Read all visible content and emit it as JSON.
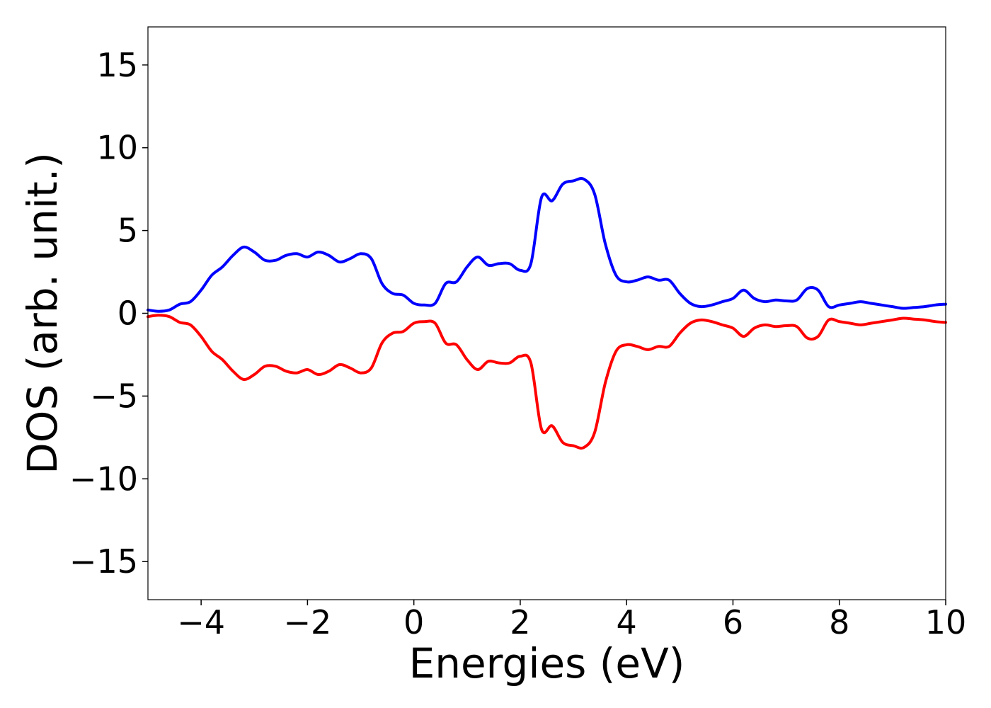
{
  "chart_data": {
    "type": "line",
    "title": "",
    "xlabel": "Energies (eV)",
    "ylabel": "DOS (arb. unit.)",
    "xlim": [
      -5,
      10
    ],
    "ylim": [
      -17.3,
      17.3
    ],
    "xticks": [
      -4,
      -2,
      0,
      2,
      4,
      6,
      8,
      10
    ],
    "yticks": [
      -15,
      -10,
      -5,
      0,
      5,
      10,
      15
    ],
    "xtick_labels": [
      "−4",
      "−2",
      "0",
      "2",
      "4",
      "6",
      "8",
      "10"
    ],
    "ytick_labels": [
      "−15",
      "−10",
      "−5",
      "0",
      "5",
      "10",
      "15"
    ],
    "grid": false,
    "series": [
      {
        "color": "#0000ff",
        "x": [
          -5.0,
          -4.8,
          -4.6,
          -4.4,
          -4.2,
          -4.0,
          -3.8,
          -3.6,
          -3.4,
          -3.2,
          -3.0,
          -2.8,
          -2.6,
          -2.4,
          -2.2,
          -2.0,
          -1.8,
          -1.6,
          -1.4,
          -1.2,
          -1.0,
          -0.8,
          -0.6,
          -0.4,
          -0.2,
          0.0,
          0.2,
          0.4,
          0.6,
          0.8,
          1.0,
          1.2,
          1.4,
          1.6,
          1.8,
          2.0,
          2.2,
          2.4,
          2.6,
          2.8,
          3.0,
          3.2,
          3.4,
          3.6,
          3.8,
          4.0,
          4.2,
          4.4,
          4.6,
          4.8,
          5.0,
          5.2,
          5.4,
          5.6,
          5.8,
          6.0,
          6.2,
          6.4,
          6.6,
          6.8,
          7.0,
          7.2,
          7.4,
          7.6,
          7.8,
          8.0,
          8.2,
          8.4,
          8.6,
          8.8,
          9.0,
          9.2,
          9.4,
          9.6,
          9.8,
          10.0
        ],
        "y": [
          0.2,
          0.12,
          0.2,
          0.55,
          0.7,
          1.4,
          2.3,
          2.8,
          3.5,
          4.0,
          3.7,
          3.2,
          3.2,
          3.5,
          3.6,
          3.4,
          3.7,
          3.5,
          3.1,
          3.3,
          3.6,
          3.3,
          1.8,
          1.2,
          1.1,
          0.6,
          0.5,
          0.6,
          1.8,
          1.9,
          2.8,
          3.4,
          2.9,
          3.0,
          3.0,
          2.6,
          3.0,
          7.0,
          6.8,
          7.8,
          8.0,
          8.1,
          7.2,
          4.2,
          2.3,
          1.9,
          2.0,
          2.2,
          2.0,
          2.0,
          1.2,
          0.6,
          0.4,
          0.5,
          0.7,
          0.9,
          1.4,
          0.9,
          0.7,
          0.8,
          0.75,
          0.8,
          1.5,
          1.4,
          0.4,
          0.5,
          0.6,
          0.7,
          0.6,
          0.5,
          0.4,
          0.3,
          0.35,
          0.4,
          0.5,
          0.55
        ]
      },
      {
        "color": "#ff0000",
        "x": [
          -5.0,
          -4.8,
          -4.6,
          -4.4,
          -4.2,
          -4.0,
          -3.8,
          -3.6,
          -3.4,
          -3.2,
          -3.0,
          -2.8,
          -2.6,
          -2.4,
          -2.2,
          -2.0,
          -1.8,
          -1.6,
          -1.4,
          -1.2,
          -1.0,
          -0.8,
          -0.6,
          -0.4,
          -0.2,
          0.0,
          0.2,
          0.4,
          0.6,
          0.8,
          1.0,
          1.2,
          1.4,
          1.6,
          1.8,
          2.0,
          2.2,
          2.4,
          2.6,
          2.8,
          3.0,
          3.2,
          3.4,
          3.6,
          3.8,
          4.0,
          4.2,
          4.4,
          4.6,
          4.8,
          5.0,
          5.2,
          5.4,
          5.6,
          5.8,
          6.0,
          6.2,
          6.4,
          6.6,
          6.8,
          7.0,
          7.2,
          7.4,
          7.6,
          7.8,
          8.0,
          8.2,
          8.4,
          8.6,
          8.8,
          9.0,
          9.2,
          9.4,
          9.6,
          9.8,
          10.0
        ],
        "y": [
          -0.2,
          -0.12,
          -0.2,
          -0.55,
          -0.7,
          -1.4,
          -2.3,
          -2.8,
          -3.5,
          -4.0,
          -3.7,
          -3.2,
          -3.2,
          -3.5,
          -3.6,
          -3.4,
          -3.7,
          -3.5,
          -3.1,
          -3.3,
          -3.6,
          -3.3,
          -1.8,
          -1.2,
          -1.1,
          -0.6,
          -0.5,
          -0.6,
          -1.8,
          -1.9,
          -2.8,
          -3.4,
          -2.9,
          -3.0,
          -3.0,
          -2.6,
          -3.0,
          -7.0,
          -6.8,
          -7.8,
          -8.0,
          -8.1,
          -7.2,
          -4.2,
          -2.3,
          -1.9,
          -2.0,
          -2.2,
          -2.0,
          -2.0,
          -1.2,
          -0.6,
          -0.4,
          -0.5,
          -0.7,
          -0.9,
          -1.4,
          -0.9,
          -0.7,
          -0.8,
          -0.75,
          -0.8,
          -1.5,
          -1.4,
          -0.4,
          -0.5,
          -0.6,
          -0.7,
          -0.6,
          -0.5,
          -0.4,
          -0.3,
          -0.35,
          -0.4,
          -0.5,
          -0.55
        ]
      }
    ]
  }
}
